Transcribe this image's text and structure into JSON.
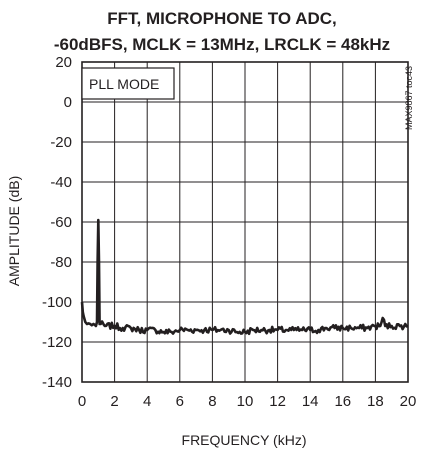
{
  "chart_data": {
    "type": "line",
    "title_lines": [
      "FFT, MICROPHONE TO ADC,",
      "-60dBFS, MCLK = 13MHz, LRCLK = 48kHz"
    ],
    "xlabel": "FREQUENCY (kHz)",
    "ylabel": "AMPLITUDE (dB)",
    "xlim": [
      0,
      20
    ],
    "ylim": [
      -140,
      20
    ],
    "x_ticks": [
      "0",
      "2",
      "4",
      "6",
      "8",
      "10",
      "12",
      "14",
      "16",
      "18",
      "20"
    ],
    "y_ticks": [
      "20",
      "0",
      "-20",
      "-40",
      "-60",
      "-80",
      "-100",
      "-120",
      "-140"
    ],
    "grid": true,
    "annotation": "PLL MODE",
    "side_label": "MAX9867 toc43",
    "color": "#231f20",
    "series": [
      {
        "x": [
          0.0,
          0.05,
          0.1,
          0.2,
          0.3,
          0.5,
          0.7,
          0.85,
          0.92,
          0.96,
          1.0,
          1.04,
          1.08,
          1.15,
          1.4,
          2.0,
          2.5,
          3.0,
          3.5,
          4.0,
          4.5,
          5.0,
          5.5,
          6.0,
          6.5,
          7.0,
          7.5,
          8.0,
          8.5,
          9.0,
          9.5,
          10.0,
          10.5,
          11.0,
          11.5,
          12.0,
          12.5,
          13.0,
          13.5,
          14.0,
          14.5,
          15.0,
          15.5,
          16.0,
          16.5,
          17.0,
          17.5,
          18.0,
          18.3,
          18.45,
          18.6,
          19.0,
          19.5,
          20.0
        ],
        "y": [
          -100,
          -105,
          -107,
          -110,
          -111,
          -111,
          -111,
          -112,
          -110,
          -80,
          -59,
          -80,
          -111,
          -111,
          -112,
          -112,
          -113,
          -113,
          -114,
          -114,
          -114,
          -115,
          -115,
          -114,
          -114,
          -114,
          -114,
          -114,
          -114,
          -114,
          -115,
          -115,
          -114,
          -114,
          -114,
          -114,
          -114,
          -114,
          -114,
          -114,
          -114,
          -113,
          -113,
          -113,
          -113,
          -113,
          -113,
          -112,
          -112,
          -108,
          -112,
          -112,
          -112,
          -112
        ]
      }
    ]
  }
}
